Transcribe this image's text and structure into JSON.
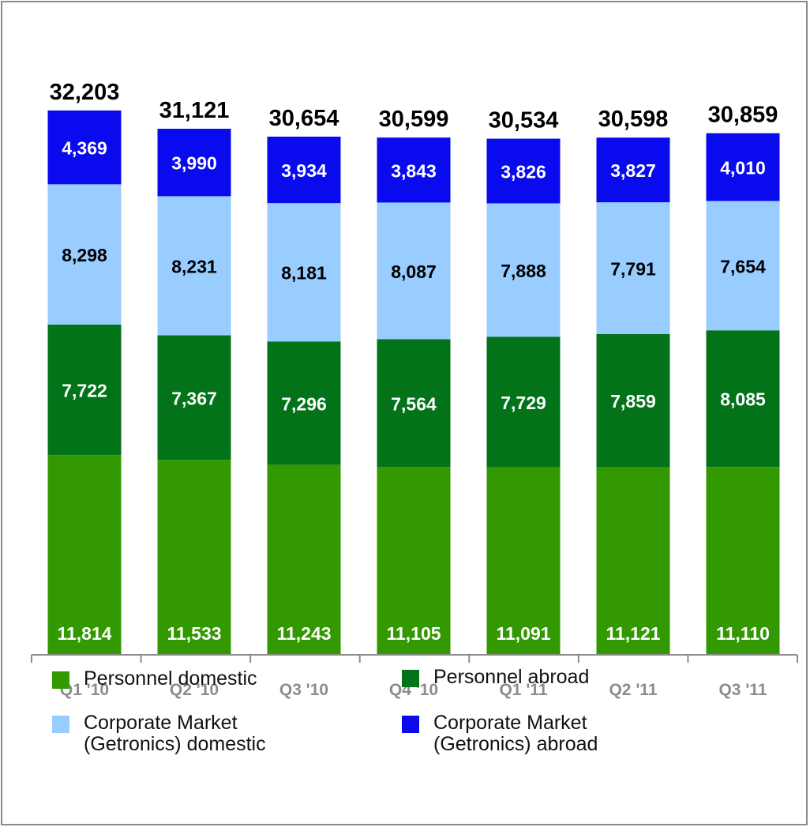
{
  "chart_data": {
    "type": "bar",
    "stacked": true,
    "categories": [
      "Q1 '10",
      "Q2 '10",
      "Q3 '10",
      "Q4 '10",
      "Q1 '11",
      "Q2 '11",
      "Q3 '11"
    ],
    "series": [
      {
        "name": "Personnel domestic",
        "color": "#339900",
        "values": [
          11814,
          11533,
          11243,
          11105,
          11091,
          11121,
          11110
        ],
        "labels": [
          "11,814",
          "11,533",
          "11,243",
          "11,105",
          "11,091",
          "11,121",
          "11,110"
        ]
      },
      {
        "name": "Personnel abroad",
        "color": "#037319",
        "values": [
          7722,
          7367,
          7296,
          7564,
          7729,
          7859,
          8085
        ],
        "labels": [
          "7,722",
          "7,367",
          "7,296",
          "7,564",
          "7,729",
          "7,859",
          "8,085"
        ]
      },
      {
        "name": "Corporate Market\n(Getronics) domestic",
        "color": "#99ccff",
        "values": [
          8298,
          8231,
          8181,
          8087,
          7888,
          7791,
          7654
        ],
        "labels": [
          "8,298",
          "8,231",
          "8,181",
          "8,087",
          "7,888",
          "7,791",
          "7,654"
        ]
      },
      {
        "name": "Corporate Market\n(Getronics) abroad",
        "color": "#0a0aee",
        "values": [
          4369,
          3990,
          3934,
          3843,
          3826,
          3827,
          4010
        ],
        "labels": [
          "4,369",
          "3,990",
          "3,934",
          "3,843",
          "3,826",
          "3,827",
          "4,010"
        ]
      }
    ],
    "totals": [
      32203,
      31121,
      30654,
      30599,
      30534,
      30598,
      30859
    ],
    "total_labels": [
      "32,203",
      "31,121",
      "30,654",
      "30,599",
      "30,534",
      "30,598",
      "30,859"
    ],
    "legend_position": "bottom",
    "grid": false
  }
}
